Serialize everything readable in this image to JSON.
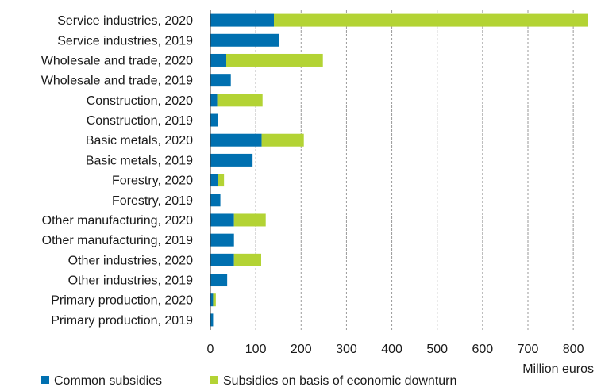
{
  "chart_data": {
    "type": "bar",
    "orientation": "horizontal",
    "stacked": true,
    "categories": [
      "Service industries, 2020",
      "Service industries, 2019",
      "Wholesale and trade, 2020",
      "Wholesale and trade, 2019",
      "Construction, 2020",
      "Construction, 2019",
      "Basic metals, 2020",
      "Basic metals, 2019",
      "Forestry, 2020",
      "Forestry, 2019",
      "Other manufacturing,  2020",
      "Other manufacturing, 2019",
      "Other industries, 2020",
      "Other industries, 2019",
      "Primary production, 2020",
      "Primary production, 2019"
    ],
    "series": [
      {
        "name": "Common subsidies",
        "color": "#0070B0",
        "values": [
          140,
          152,
          35,
          45,
          15,
          17,
          113,
          93,
          17,
          22,
          52,
          52,
          52,
          37,
          6,
          6
        ]
      },
      {
        "name": "Subsidies on basis of economic downturn",
        "color": "#B3D334",
        "values": [
          693,
          0,
          213,
          0,
          100,
          0,
          93,
          0,
          13,
          0,
          70,
          0,
          60,
          0,
          6,
          0
        ]
      }
    ],
    "xlabel": "Million euros",
    "ylabel": "",
    "xlim": [
      0,
      840
    ],
    "xticks": [
      "0",
      "100",
      "200",
      "300",
      "400",
      "500",
      "600",
      "700",
      "800"
    ],
    "grid": "vertical dashed",
    "legend_position": "bottom"
  }
}
